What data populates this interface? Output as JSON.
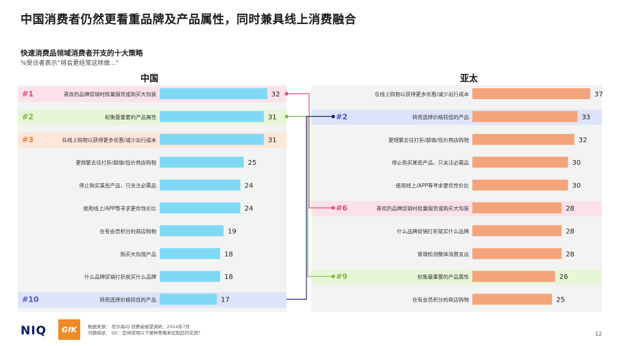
{
  "title": "中国消费者仍然更看重品牌及产品属性，同时兼具线上消费融合",
  "subtitle": "快速消费品领域消费者开支的十大策略",
  "subnote": "%受访者表示“将会更经常这样做...”",
  "colors": {
    "china_bar": "#7fd9f5",
    "apac_bar": "#f4a47a",
    "pink": "#fbe1ea",
    "green": "#e8f6d8",
    "peach": "#fde6da",
    "blue": "#dde3f8",
    "pink_rank": "#e64b7a",
    "green_rank": "#7ab843",
    "peach_rank": "#f07a3a",
    "blue_rank": "#4a56c8",
    "navy_rank": "#1e2a70",
    "connector_pink": "#e64b7a",
    "connector_green": "#7ab843",
    "connector_navy": "#1e2a70",
    "connector_blue": "#4a56c8"
  },
  "chart_data": [
    {
      "type": "bar",
      "title": "中国",
      "categories": [
        "喜欢的品牌促销时批量囤货或购买大包装",
        "权衡最重要的产品属性",
        "在线上购物以获得更多优惠/减少出行成本",
        "更频繁去往打折/超值/低价商店购物",
        "停止购买某些产品，只关注必需品",
        "使用线上/APP等寻求更优性价比",
        "在有会员积分的商店购物",
        "购买大包规产品",
        "什么品牌促销打折就买什么品牌",
        "转而选择价格较低的产品"
      ],
      "values": [
        32,
        31,
        31,
        25,
        24,
        24,
        19,
        18,
        18,
        17
      ],
      "ranks": [
        "#1",
        "#2",
        "#3",
        "",
        "",
        "",
        "",
        "",
        "",
        "#10"
      ],
      "highlights": [
        "pink",
        "green",
        "peach",
        "",
        "",
        "",
        "",
        "",
        "",
        "blue"
      ],
      "xlim": [
        0,
        40
      ]
    },
    {
      "type": "bar",
      "title": "亚太",
      "categories": [
        "在线上购物以获得更多优惠/减少出行成本",
        "转而选择价格较低的产品",
        "更频繁去往打折/超值/低价商店购物",
        "停止购买某些产品，只关注必需品",
        "使用线上/APP等寻求更优性价比",
        "喜欢的品牌促销时批量囤货或购买大包装",
        "什么品牌促销打折就买什么品牌",
        "管理检测整体消费支出",
        "权衡最重要的产品属性",
        "在有会员积分的商店购物"
      ],
      "values": [
        37,
        33,
        32,
        30,
        30,
        28,
        28,
        28,
        26,
        25
      ],
      "ranks": [
        "",
        "#2",
        "",
        "",
        "",
        "#6",
        "",
        "",
        "#9",
        ""
      ],
      "highlights": [
        "",
        "blue",
        "",
        "",
        "",
        "pink",
        "",
        "",
        "green",
        ""
      ],
      "xlim": [
        0,
        40
      ]
    }
  ],
  "connectors": [
    {
      "from": 0,
      "to": 5,
      "color": "pink"
    },
    {
      "from": 1,
      "to": 8,
      "color": "green"
    },
    {
      "from": 9,
      "to": 1,
      "color": "navy"
    }
  ],
  "footer": {
    "logo_niq": "NIQ",
    "logo_gfk": "GfK",
    "source_line1": "数据来源：  尼尔森IQ 消费者展望调研，2024年7月",
    "source_line2": "问题描述：  Q5：您将使用以下哪种策略来控制您的花销？",
    "page_number": "12"
  }
}
